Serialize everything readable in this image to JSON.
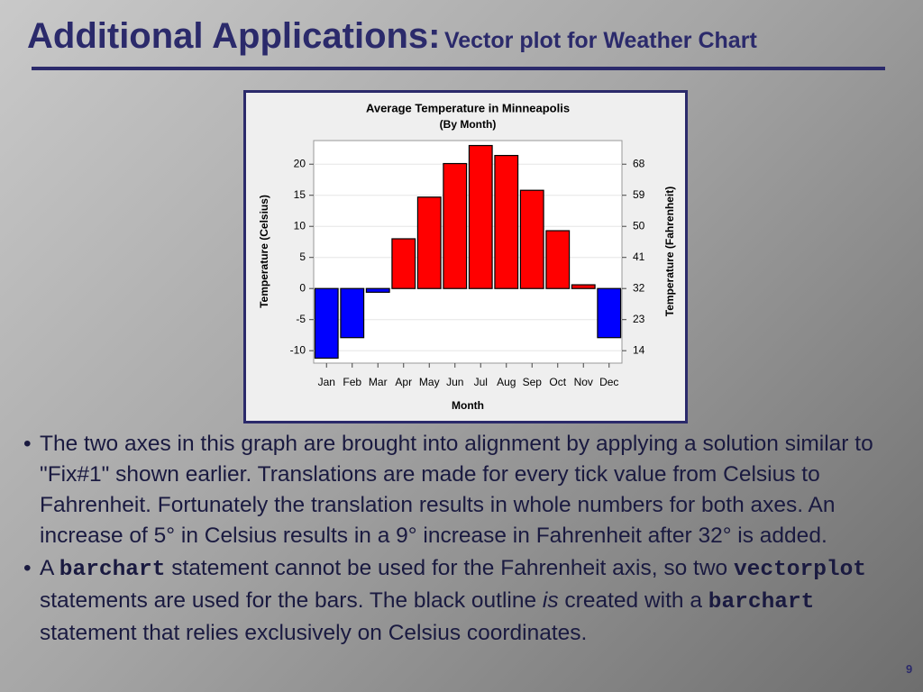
{
  "slide": {
    "title": "Additional Applications:",
    "subtitle": "Vector plot for Weather Chart",
    "bullets": [
      {
        "segments": [
          "The two axes in this graph are brought into alignment by applying a solution similar to \"Fix#1\" shown earlier.  Translations are made for every tick value from Celsius to Fahrenheit.  Fortunately the translation results in whole numbers for both axes.  An increase of 5° in Celsius results in a 9° increase in Fahrenheit after 32° is added."
        ]
      },
      {
        "segments": [
          "A ",
          "barchart",
          " statement cannot be used for the Fahrenheit axis, so  two ",
          "vectorplot",
          "  statements are used for the bars. The black outline ",
          "is",
          " created with a ",
          "barchart",
          "  statement that relies exclusively on Celsius coordinates."
        ]
      }
    ],
    "page_number": "9"
  },
  "chart_data": {
    "type": "bar",
    "title": "Average Temperature in Minneapolis",
    "subtitle": "(By Month)",
    "x_label": "Month",
    "y_label": "Temperature (Celsius)",
    "y2_label": "Temperature (Fahrenheit)",
    "categories": [
      "Jan",
      "Feb",
      "Mar",
      "Apr",
      "May",
      "Jun",
      "Jul",
      "Aug",
      "Sep",
      "Oct",
      "Nov",
      "Dec"
    ],
    "values": [
      -11.2,
      -7.9,
      -0.6,
      8.0,
      14.7,
      20.1,
      23.0,
      21.4,
      15.8,
      9.3,
      0.6,
      -7.9
    ],
    "colors": [
      "#0000ff",
      "#0000ff",
      "#0000ff",
      "#ff0000",
      "#ff0000",
      "#ff0000",
      "#ff0000",
      "#ff0000",
      "#ff0000",
      "#ff0000",
      "#ff0000",
      "#0000ff"
    ],
    "ylim": [
      -12,
      23.8
    ],
    "yticks": [
      -10,
      -5,
      0,
      5,
      10,
      15,
      20
    ],
    "y2lim": [
      10.4,
      74.84
    ],
    "y2ticks": [
      14,
      23,
      32,
      41,
      50,
      59,
      68
    ],
    "grid": true
  }
}
